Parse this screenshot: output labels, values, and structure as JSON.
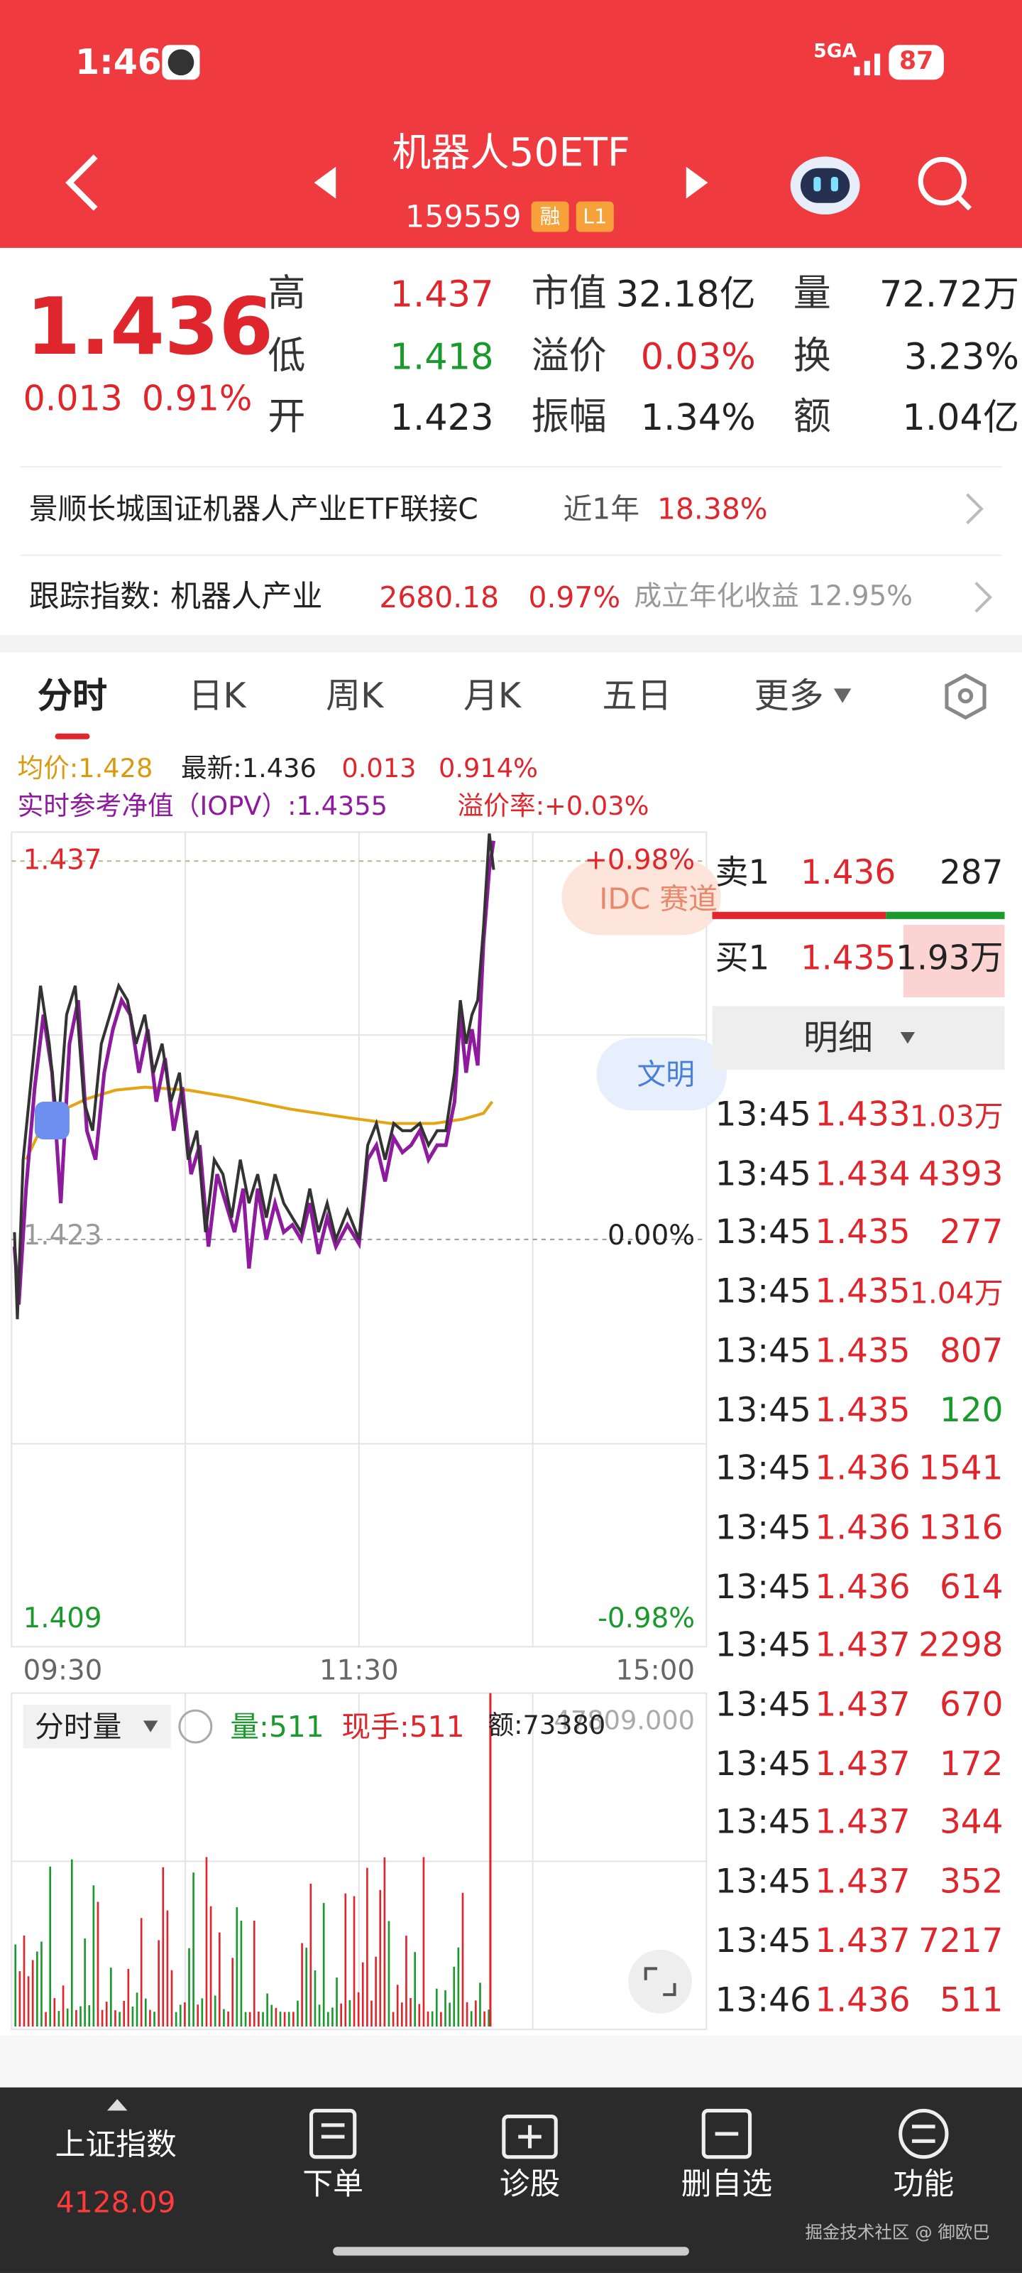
{
  "status_bar": {
    "time": "1:46",
    "network": "5GA",
    "battery": "87"
  },
  "header": {
    "title": "机器人50ETF",
    "code": "159559",
    "badges": [
      "融",
      "L1"
    ]
  },
  "quote": {
    "price": "1.436",
    "change": "0.013",
    "change_pct": "0.91%",
    "stats": [
      [
        "高",
        "1.437",
        "市值",
        "32.18亿",
        "量",
        "72.72万"
      ],
      [
        "低",
        "1.418",
        "溢价",
        "0.03%",
        "换",
        "3.23%"
      ],
      [
        "开",
        "1.423",
        "振幅",
        "1.34%",
        "额",
        "1.04亿"
      ]
    ]
  },
  "fund_link": {
    "name": "景顺长城国证机器人产业ETF联接C",
    "period": "近1年",
    "return": "18.38%"
  },
  "tracking_index": {
    "label": "跟踪指数: 机器人产业",
    "value": "2680.18",
    "change": "0.97%",
    "annualized": "成立年化收益 12.95%"
  },
  "tabs": [
    "分时",
    "日K",
    "周K",
    "月K",
    "五日",
    "更多"
  ],
  "chart_legend": {
    "avg": "均价:1.428",
    "latest": "最新:1.436",
    "change": "0.013",
    "change_pct": "0.914%",
    "iopv": "实时参考净值（IOPV）:1.4355",
    "premium": "溢价率:+0.03%"
  },
  "price_axis": {
    "high": "1.437",
    "high_pct": "+0.98%",
    "mid": "1.423",
    "mid_pct": "0.00%",
    "low": "1.409",
    "low_pct": "-0.98%"
  },
  "time_axis": [
    "09:30",
    "11:30",
    "15:00"
  ],
  "overlays": [
    "IDC 赛道",
    "文明"
  ],
  "volume": {
    "selector": "分时量",
    "volume": "量:511",
    "hand": "现手:511",
    "amount": "额:73380",
    "scale": "47809.000"
  },
  "order_book": {
    "ask": [
      "卖1",
      "1.436",
      "287"
    ],
    "bid": [
      "买1",
      "1.435",
      "1.93万"
    ],
    "detail": "明细"
  },
  "trades": [
    {
      "time": "13:45",
      "price": "1.433",
      "volume": "1.03万",
      "color": "#e0262d"
    },
    {
      "time": "13:45",
      "price": "1.434",
      "volume": "4393",
      "color": "#e0262d"
    },
    {
      "time": "13:45",
      "price": "1.435",
      "volume": "277",
      "color": "#e0262d"
    },
    {
      "time": "13:45",
      "price": "1.435",
      "volume": "1.04万",
      "color": "#e0262d"
    },
    {
      "time": "13:45",
      "price": "1.435",
      "volume": "807",
      "color": "#e0262d"
    },
    {
      "time": "13:45",
      "price": "1.435",
      "volume": "120",
      "color": "#1a9a2c"
    },
    {
      "time": "13:45",
      "price": "1.436",
      "volume": "1541",
      "color": "#e0262d"
    },
    {
      "time": "13:45",
      "price": "1.436",
      "volume": "1316",
      "color": "#e0262d"
    },
    {
      "time": "13:45",
      "price": "1.436",
      "volume": "614",
      "color": "#e0262d"
    },
    {
      "time": "13:45",
      "price": "1.437",
      "volume": "2298",
      "color": "#e0262d"
    },
    {
      "time": "13:45",
      "price": "1.437",
      "volume": "670",
      "color": "#e0262d"
    },
    {
      "time": "13:45",
      "price": "1.437",
      "volume": "172",
      "color": "#e0262d"
    },
    {
      "time": "13:45",
      "price": "1.437",
      "volume": "344",
      "color": "#e0262d"
    },
    {
      "time": "13:45",
      "price": "1.437",
      "volume": "352",
      "color": "#e0262d"
    },
    {
      "time": "13:45",
      "price": "1.437",
      "volume": "7217",
      "color": "#e0262d"
    },
    {
      "time": "13:46",
      "price": "1.436",
      "volume": "511",
      "color": "#e0262d"
    }
  ],
  "bottom_nav": {
    "index_name": "上证指数",
    "index_value": "4128.09",
    "items": [
      "下单",
      "诊股",
      "删自选",
      "功能"
    ]
  },
  "footer": "掘金技术社区 @ 御欧巴"
}
